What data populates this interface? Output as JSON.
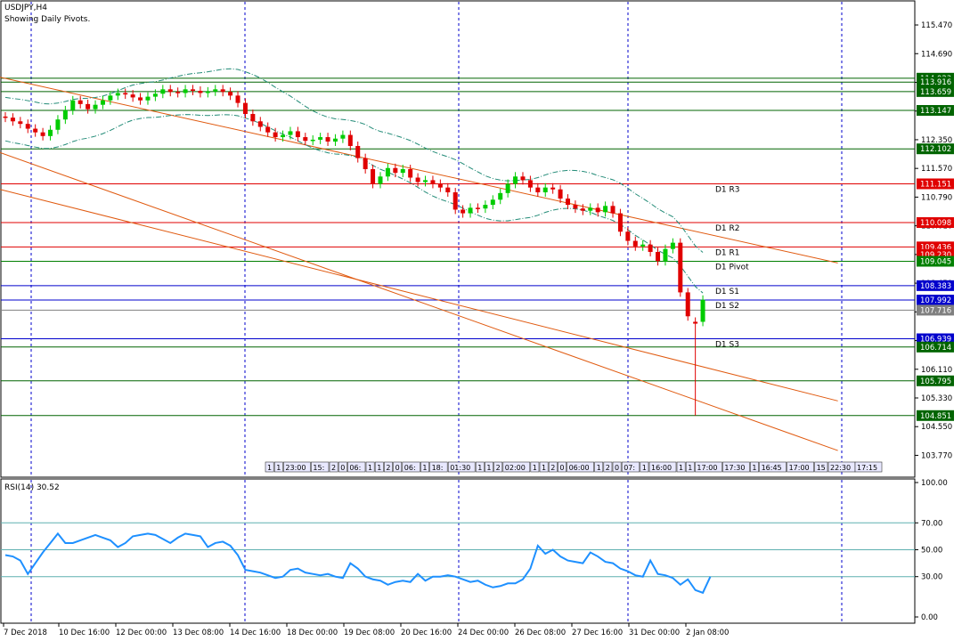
{
  "header": {
    "symbol": "USDJPY,H4",
    "subtitle": "Showing Daily Pivots."
  },
  "indicator": {
    "label": "RSI(14) 30.52"
  },
  "colors": {
    "bull": "#00cc00",
    "bear": "#e00000",
    "hline_green": "#006400",
    "hline_red": "#e00000",
    "hline_blue": "#0000cc",
    "channel": "#e05a10",
    "bands": "#228b77",
    "rsi": "#1e90ff",
    "grid": "#0000cc"
  },
  "chart_data": [
    {
      "type": "candlestick",
      "title": "USDJPY,H4",
      "ylim": [
        103.2,
        116.1
      ],
      "y_ticks": [
        "115.470",
        "114.690",
        "113.910",
        "113.130",
        "112.350",
        "111.570",
        "110.790",
        "110.010",
        "109.230",
        "108.450",
        "107.670",
        "106.890",
        "106.110",
        "105.330",
        "104.550",
        "103.770"
      ],
      "price_labels": [
        {
          "value": "114.023",
          "color": "#006400"
        },
        {
          "value": "113.916",
          "color": "#006400"
        },
        {
          "value": "113.659",
          "color": "#006400"
        },
        {
          "value": "113.147",
          "color": "#006400"
        },
        {
          "value": "112.102",
          "color": "#006400"
        },
        {
          "value": "111.151",
          "color": "#e00000"
        },
        {
          "value": "110.098",
          "color": "#e00000"
        },
        {
          "value": "109.436",
          "color": "#e00000"
        },
        {
          "value": "109.230",
          "color": "#e00000"
        },
        {
          "value": "109.045",
          "color": "#008000"
        },
        {
          "value": "108.383",
          "color": "#0000cc"
        },
        {
          "value": "107.992",
          "color": "#0000cc"
        },
        {
          "value": "107.716",
          "color": "#808080"
        },
        {
          "value": "106.939",
          "color": "#0000cc"
        },
        {
          "value": "106.714",
          "color": "#006400"
        },
        {
          "value": "105.795",
          "color": "#006400"
        },
        {
          "value": "104.851",
          "color": "#006400"
        }
      ],
      "pivots": [
        {
          "name": "D1 R3",
          "value": 111.151,
          "color": "#e00000"
        },
        {
          "name": "D1 R2",
          "value": 110.098,
          "color": "#e00000"
        },
        {
          "name": "D1 R1",
          "value": 109.436,
          "color": "#e00000"
        },
        {
          "name": "D1 Pivot",
          "value": 109.045,
          "color": "#008000"
        },
        {
          "name": "D1 S1",
          "value": 108.383,
          "color": "#0000cc"
        },
        {
          "name": "D1 S2",
          "value": 107.992,
          "color": "#0000cc"
        },
        {
          "name": "D1 S3",
          "value": 106.939,
          "color": "#0000cc"
        }
      ],
      "closes": [
        112.95,
        112.85,
        112.78,
        112.65,
        112.55,
        112.45,
        112.62,
        112.9,
        113.15,
        113.42,
        113.32,
        113.18,
        113.3,
        113.42,
        113.55,
        113.62,
        113.58,
        113.5,
        113.42,
        113.52,
        113.6,
        113.72,
        113.65,
        113.62,
        113.72,
        113.68,
        113.62,
        113.66,
        113.72,
        113.65,
        113.55,
        113.35,
        113.05,
        112.85,
        112.7,
        112.55,
        112.42,
        112.48,
        112.58,
        112.42,
        112.32,
        112.35,
        112.42,
        112.3,
        112.38,
        112.48,
        112.18,
        111.85,
        111.55,
        111.15,
        111.35,
        111.58,
        111.45,
        111.55,
        111.32,
        111.2,
        111.25,
        111.15,
        111.05,
        110.92,
        110.45,
        110.35,
        110.5,
        110.48,
        110.58,
        110.72,
        110.9,
        111.15,
        111.35,
        111.25,
        111.05,
        110.92,
        111.05,
        111.0,
        110.75,
        110.58,
        110.48,
        110.42,
        110.5,
        110.38,
        110.55,
        110.35,
        109.85,
        109.6,
        109.45,
        109.5,
        109.3,
        109.05,
        109.38,
        109.55,
        108.2,
        107.55,
        107.35,
        108.0
      ],
      "opens": [
        112.98,
        112.95,
        112.85,
        112.78,
        112.65,
        112.55,
        112.45,
        112.62,
        112.9,
        113.15,
        113.42,
        113.32,
        113.18,
        113.3,
        113.42,
        113.55,
        113.62,
        113.58,
        113.5,
        113.42,
        113.52,
        113.6,
        113.72,
        113.65,
        113.62,
        113.72,
        113.68,
        113.62,
        113.66,
        113.72,
        113.65,
        113.55,
        113.35,
        113.05,
        112.85,
        112.7,
        112.55,
        112.42,
        112.48,
        112.58,
        112.42,
        112.32,
        112.35,
        112.42,
        112.3,
        112.38,
        112.48,
        112.18,
        111.85,
        111.55,
        111.15,
        111.35,
        111.58,
        111.45,
        111.55,
        111.32,
        111.2,
        111.25,
        111.15,
        111.05,
        110.92,
        110.45,
        110.35,
        110.5,
        110.48,
        110.58,
        110.72,
        110.9,
        111.15,
        111.35,
        111.25,
        111.05,
        110.92,
        111.05,
        111.0,
        110.75,
        110.58,
        110.48,
        110.42,
        110.5,
        110.38,
        110.55,
        110.35,
        109.85,
        109.6,
        109.45,
        109.5,
        109.3,
        109.05,
        109.38,
        109.55,
        108.2,
        107.4,
        107.4
      ],
      "extremes": [
        {
          "index": 92,
          "low": 104.85
        }
      ],
      "hlines": [
        {
          "value": 114.023,
          "color": "#006400"
        },
        {
          "value": 113.916,
          "color": "#006400"
        },
        {
          "value": 113.659,
          "color": "#006400"
        },
        {
          "value": 113.147,
          "color": "#006400"
        },
        {
          "value": 112.102,
          "color": "#006400"
        },
        {
          "value": 111.151,
          "color": "#e00000"
        },
        {
          "value": 110.098,
          "color": "#e00000"
        },
        {
          "value": 109.436,
          "color": "#e00000"
        },
        {
          "value": 109.045,
          "color": "#008000"
        },
        {
          "value": 108.383,
          "color": "#0000cc"
        },
        {
          "value": 107.992,
          "color": "#0000cc"
        },
        {
          "value": 107.716,
          "color": "#808080"
        },
        {
          "value": 106.939,
          "color": "#0000cc"
        },
        {
          "value": 106.714,
          "color": "#006400"
        },
        {
          "value": 105.795,
          "color": "#006400"
        },
        {
          "value": 104.851,
          "color": "#006400"
        }
      ],
      "channel_lines": [
        {
          "from": [
            0,
            114.05
          ],
          "to": [
            111,
            109.0
          ]
        },
        {
          "from": [
            0,
            112.0
          ],
          "to": [
            111,
            103.9
          ]
        },
        {
          "from": [
            0,
            111.0
          ],
          "to": [
            111,
            105.25
          ]
        }
      ],
      "sessions": [
        "1",
        "1",
        "23:00",
        "15:",
        "2",
        "0",
        "06:",
        "1",
        "1",
        "2",
        "0",
        "06:",
        "1",
        "18:",
        "01:30",
        "1",
        "1",
        "2",
        "02:00",
        "1",
        "1",
        "2",
        "0",
        "06:00",
        "1",
        "2",
        "0",
        "07:",
        "1",
        "16:00",
        "1",
        "1",
        "17:00",
        "17:30",
        "1",
        "16:45",
        "17:00",
        "15",
        "22:30",
        "17:15"
      ]
    },
    {
      "type": "line",
      "title": "RSI(14) 30.52",
      "ylim": [
        0,
        100
      ],
      "y_ticks": [
        "100.00",
        "70.00",
        "50.00",
        "30.00",
        "0.00"
      ],
      "levels": [
        70,
        50,
        30
      ],
      "values": [
        46,
        45,
        42,
        32,
        40,
        48,
        55,
        62,
        55,
        55,
        57,
        59,
        61,
        59,
        57,
        52,
        55,
        60,
        61,
        62,
        61,
        58,
        55,
        59,
        62,
        61,
        60,
        52,
        55,
        56,
        53,
        46,
        35,
        34,
        33,
        31,
        29,
        30,
        35,
        36,
        33,
        32,
        31,
        32,
        30,
        29,
        40,
        36,
        30,
        28,
        27,
        24,
        26,
        27,
        26,
        32,
        27,
        30,
        30,
        31,
        30,
        28,
        26,
        27,
        24,
        22,
        23,
        25,
        25,
        28,
        36,
        53,
        47,
        50,
        45,
        42,
        41,
        40,
        48,
        45,
        41,
        40,
        36,
        34,
        31,
        30,
        42,
        32,
        31,
        29,
        24,
        28,
        20,
        18,
        30
      ],
      "x_labels": [
        "7 Dec 2018",
        "10 Dec 16:00",
        "12 Dec 00:00",
        "13 Dec 08:00",
        "14 Dec 16:00",
        "18 Dec 00:00",
        "19 Dec 08:00",
        "20 Dec 16:00",
        "24 Dec 00:00",
        "26 Dec 08:00",
        "27 Dec 16:00",
        "31 Dec 00:00",
        "2 Jan 08:00"
      ]
    }
  ]
}
